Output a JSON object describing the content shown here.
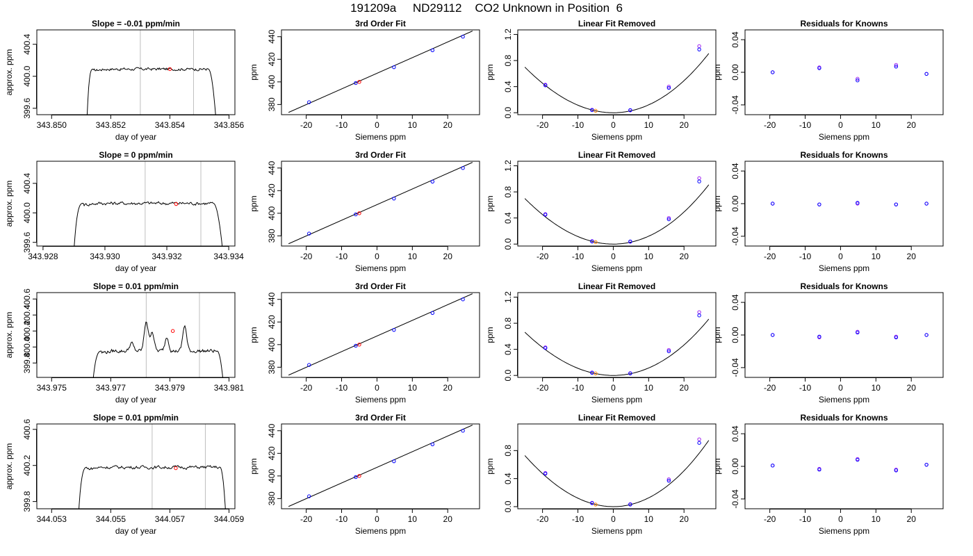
{
  "figure": {
    "title": "191209a     ND29112    CO2 Unknown in Position  6"
  },
  "colors": {
    "trace": "#000000",
    "vline": "#bebebe",
    "unknown_point": "#ff0000",
    "standard_point": "#0000ff",
    "residual_alt_point": "#a020f0",
    "unknown_fit_point": "#ff7f00"
  },
  "chart_data": [
    {
      "type": "line",
      "row": 0,
      "col": 0,
      "title": "Slope =  -0.01  ppm/min",
      "xlabel": "day of year",
      "ylabel": "approx. ppm",
      "xlim": [
        343.8495,
        343.8562
      ],
      "ylim": [
        399.52,
        400.58
      ],
      "xticks": [
        343.85,
        343.852,
        343.854,
        343.856
      ],
      "xtick_labels": [
        "343.850",
        "343.852",
        "343.854",
        "343.856"
      ],
      "yticks": [
        399.6,
        400.0,
        400.4
      ],
      "ytick_labels": [
        "399.6",
        "400.0",
        "400.4"
      ],
      "trace": {
        "start": 343.8512,
        "ramp_end": 343.8514,
        "flat_end": 343.8553,
        "end": 343.85555,
        "level": 400.09,
        "base": 399.5,
        "noise": 0.015,
        "spikes": []
      },
      "vlines": [
        343.853,
        343.8548
      ],
      "marker": {
        "x": 343.854,
        "y": 400.09
      }
    },
    {
      "type": "line",
      "row": 1,
      "col": 0,
      "title": "Slope =  0  ppm/min",
      "xlabel": "day of year",
      "ylabel": "approx. ppm",
      "xlim": [
        343.9278,
        343.9342
      ],
      "ylim": [
        399.55,
        400.7
      ],
      "xticks": [
        343.928,
        343.93,
        343.932,
        343.934
      ],
      "xtick_labels": [
        "343.928",
        "343.930",
        "343.932",
        "343.934"
      ],
      "yticks": [
        399.6,
        400.0,
        400.4
      ],
      "ytick_labels": [
        "399.6",
        "400.0",
        "400.4"
      ],
      "trace": {
        "start": 343.929,
        "ramp_end": 343.9293,
        "flat_end": 343.9335,
        "end": 343.9338,
        "level": 400.13,
        "base": 399.5,
        "noise": 0.02,
        "spikes": []
      },
      "vlines": [
        343.9313,
        343.9331
      ],
      "marker": {
        "x": 343.9323,
        "y": 400.12
      }
    },
    {
      "type": "line",
      "row": 2,
      "col": 0,
      "title": "Slope =  0.01  ppm/min",
      "xlabel": "day of year",
      "ylabel": "approx. ppm",
      "xlim": [
        343.9745,
        343.9812
      ],
      "ylim": [
        399.62,
        400.68
      ],
      "xticks": [
        343.975,
        343.977,
        343.979,
        343.981
      ],
      "xtick_labels": [
        "343.975",
        "343.977",
        "343.979",
        "343.981"
      ],
      "yticks": [
        399.8,
        400.0,
        400.2,
        400.4,
        400.6
      ],
      "ytick_labels": [
        "399.8",
        "400.0",
        "400.2",
        "400.4",
        "400.6"
      ],
      "trace": {
        "start": 343.9764,
        "ramp_end": 343.9767,
        "flat_end": 343.9806,
        "end": 343.9808,
        "level": 399.95,
        "base": 399.58,
        "noise": 0.02,
        "spikes": [
          [
            343.9777,
            0.1
          ],
          [
            343.9782,
            0.38
          ],
          [
            343.9784,
            0.25
          ],
          [
            343.9789,
            0.18
          ],
          [
            343.9795,
            0.32
          ]
        ]
      },
      "vlines": [
        343.9782,
        343.98
      ],
      "marker": {
        "x": 343.9791,
        "y": 400.2
      }
    },
    {
      "type": "line",
      "row": 3,
      "col": 0,
      "title": "Slope =  0.01  ppm/min",
      "xlabel": "day of year",
      "ylabel": "approx. ppm",
      "xlim": [
        344.0525,
        344.0592
      ],
      "ylim": [
        399.72,
        400.66
      ],
      "xticks": [
        344.053,
        344.055,
        344.057,
        344.059
      ],
      "xtick_labels": [
        "344.053",
        "344.055",
        "344.057",
        "344.059"
      ],
      "yticks": [
        399.8,
        400.2,
        400.6
      ],
      "ytick_labels": [
        "399.8",
        "400.2",
        "400.6"
      ],
      "trace": {
        "start": 344.0539,
        "ramp_end": 344.0542,
        "flat_end": 344.0587,
        "end": 344.0589,
        "level": 400.18,
        "base": 399.6,
        "noise": 0.015,
        "spikes": []
      },
      "vlines": [
        344.0564,
        344.0582
      ],
      "marker": {
        "x": 344.0572,
        "y": 400.17
      }
    },
    {
      "type": "scatter",
      "row": 0,
      "col": 1,
      "title": "3rd Order Fit",
      "xlabel": "Siemens ppm",
      "ylabel": "ppm",
      "xlim": [
        -27,
        29
      ],
      "ylim": [
        371,
        446
      ],
      "xticks": [
        -20,
        -10,
        0,
        10,
        20
      ],
      "xtick_labels": [
        "-20",
        "-10",
        "0",
        "10",
        "20"
      ],
      "yticks": [
        380,
        400,
        420,
        440
      ],
      "ytick_labels": [
        "380",
        "400",
        "420",
        "440"
      ],
      "line": {
        "x": [
          -25,
          27
        ],
        "y": [
          373.0,
          445.0
        ]
      },
      "standards": {
        "x": [
          -19.2,
          -6.0,
          4.8,
          15.7,
          24.3
        ],
        "y": [
          382,
          399,
          413,
          428,
          440
        ]
      },
      "unknown": {
        "x": -5.0,
        "y": 400
      }
    },
    {
      "type": "scatter",
      "row": 1,
      "col": 1,
      "title": "3rd Order Fit",
      "xlabel": "Siemens ppm",
      "ylabel": "ppm",
      "xlim": [
        -27,
        29
      ],
      "ylim": [
        371,
        446
      ],
      "xticks": [
        -20,
        -10,
        0,
        10,
        20
      ],
      "xtick_labels": [
        "-20",
        "-10",
        "0",
        "10",
        "20"
      ],
      "yticks": [
        380,
        400,
        420,
        440
      ],
      "ytick_labels": [
        "380",
        "400",
        "420",
        "440"
      ],
      "line": {
        "x": [
          -25,
          27
        ],
        "y": [
          373.0,
          445.0
        ]
      },
      "standards": {
        "x": [
          -19.2,
          -6.0,
          4.8,
          15.7,
          24.3
        ],
        "y": [
          382,
          399,
          413,
          428,
          440
        ]
      },
      "unknown": {
        "x": -5.0,
        "y": 400
      }
    },
    {
      "type": "scatter",
      "row": 2,
      "col": 1,
      "title": "3rd Order Fit",
      "xlabel": "Siemens ppm",
      "ylabel": "ppm",
      "xlim": [
        -27,
        29
      ],
      "ylim": [
        371,
        446
      ],
      "xticks": [
        -20,
        -10,
        0,
        10,
        20
      ],
      "xtick_labels": [
        "-20",
        "-10",
        "0",
        "10",
        "20"
      ],
      "yticks": [
        380,
        400,
        420,
        440
      ],
      "ytick_labels": [
        "380",
        "400",
        "420",
        "440"
      ],
      "line": {
        "x": [
          -25,
          27
        ],
        "y": [
          373.0,
          445.0
        ]
      },
      "standards": {
        "x": [
          -19.2,
          -6.0,
          4.8,
          15.7,
          24.3
        ],
        "y": [
          382,
          399,
          413,
          428,
          440
        ]
      },
      "unknown": {
        "x": -5.0,
        "y": 400
      }
    },
    {
      "type": "scatter",
      "row": 3,
      "col": 1,
      "title": "3rd Order Fit",
      "xlabel": "Siemens ppm",
      "ylabel": "ppm",
      "xlim": [
        -27,
        29
      ],
      "ylim": [
        371,
        446
      ],
      "xticks": [
        -20,
        -10,
        0,
        10,
        20
      ],
      "xtick_labels": [
        "-20",
        "-10",
        "0",
        "10",
        "20"
      ],
      "yticks": [
        380,
        400,
        420,
        440
      ],
      "ytick_labels": [
        "380",
        "400",
        "420",
        "440"
      ],
      "line": {
        "x": [
          -25,
          27
        ],
        "y": [
          373.0,
          445.0
        ]
      },
      "standards": {
        "x": [
          -19.2,
          -6.0,
          4.8,
          15.7,
          24.3
        ],
        "y": [
          382,
          399,
          413,
          428,
          440
        ]
      },
      "unknown": {
        "x": -5.0,
        "y": 400
      }
    },
    {
      "type": "scatter",
      "row": 0,
      "col": 2,
      "title": "Linear Fit Removed",
      "xlabel": "Siemens ppm",
      "ylabel": "ppm",
      "xlim": [
        -27,
        29
      ],
      "ylim": [
        -0.03,
        1.27
      ],
      "xticks": [
        -20,
        -10,
        0,
        10,
        20
      ],
      "xtick_labels": [
        "-20",
        "-10",
        "0",
        "10",
        "20"
      ],
      "yticks": [
        0.0,
        0.4,
        0.8,
        1.2
      ],
      "ytick_labels": [
        "0.0",
        "0.4",
        "0.8",
        "1.2"
      ],
      "curve": {
        "a": 0.00118,
        "b": 2.45e-06,
        "x0": -25,
        "x1": 27
      },
      "standards": {
        "x": [
          -19.2,
          -6.0,
          4.8,
          15.7,
          24.3
        ],
        "y": [
          0.42,
          0.04,
          0.04,
          0.38,
          0.97
        ]
      },
      "residual_alt": {
        "x": [
          -19.2,
          -6.0,
          4.8,
          15.7,
          24.3
        ],
        "y": [
          0.43,
          0.045,
          0.035,
          0.4,
          1.02
        ]
      },
      "unknown": {
        "x": -5.0,
        "y": 0.03
      }
    },
    {
      "type": "scatter",
      "row": 1,
      "col": 2,
      "title": "Linear Fit Removed",
      "xlabel": "Siemens ppm",
      "ylabel": "ppm",
      "xlim": [
        -27,
        29
      ],
      "ylim": [
        -0.03,
        1.27
      ],
      "xticks": [
        -20,
        -10,
        0,
        10,
        20
      ],
      "xtick_labels": [
        "-20",
        "-10",
        "0",
        "10",
        "20"
      ],
      "yticks": [
        0.0,
        0.4,
        0.8,
        1.2
      ],
      "ytick_labels": [
        "0.0",
        "0.4",
        "0.8",
        "1.2"
      ],
      "curve": {
        "a": 0.00118,
        "b": 2.5e-06,
        "x0": -25,
        "x1": 27
      },
      "standards": {
        "x": [
          -19.2,
          -6.0,
          4.8,
          15.7,
          24.3
        ],
        "y": [
          0.45,
          0.04,
          0.04,
          0.38,
          0.96
        ]
      },
      "residual_alt": {
        "x": [
          -19.2,
          -6.0,
          4.8,
          15.7,
          24.3
        ],
        "y": [
          0.46,
          0.045,
          0.035,
          0.4,
          1.01
        ]
      },
      "unknown": {
        "x": -5.0,
        "y": 0.03
      }
    },
    {
      "type": "scatter",
      "row": 2,
      "col": 2,
      "title": "Linear Fit Removed",
      "xlabel": "Siemens ppm",
      "ylabel": "ppm",
      "xlim": [
        -27,
        29
      ],
      "ylim": [
        -0.03,
        1.27
      ],
      "xticks": [
        -20,
        -10,
        0,
        10,
        20
      ],
      "xtick_labels": [
        "-20",
        "-10",
        "0",
        "10",
        "20"
      ],
      "yticks": [
        0.0,
        0.4,
        0.8,
        1.2
      ],
      "ytick_labels": [
        "0.0",
        "0.4",
        "0.8",
        "1.2"
      ],
      "curve": {
        "a": 0.00112,
        "b": 2.4e-06,
        "x0": -25,
        "x1": 27
      },
      "standards": {
        "x": [
          -19.2,
          -6.0,
          4.8,
          15.7,
          24.3
        ],
        "y": [
          0.42,
          0.04,
          0.03,
          0.37,
          0.92
        ]
      },
      "residual_alt": {
        "x": [
          -19.2,
          -6.0,
          4.8,
          15.7,
          24.3
        ],
        "y": [
          0.43,
          0.045,
          0.035,
          0.39,
          0.97
        ]
      },
      "unknown": {
        "x": -5.0,
        "y": 0.03
      }
    },
    {
      "type": "scatter",
      "row": 3,
      "col": 2,
      "title": "Linear Fit Removed",
      "xlabel": "Siemens ppm",
      "ylabel": "ppm",
      "xlim": [
        -27,
        29
      ],
      "ylim": [
        -0.03,
        1.18
      ],
      "xticks": [
        -20,
        -10,
        0,
        10,
        20
      ],
      "xtick_labels": [
        "-20",
        "-10",
        "0",
        "10",
        "20"
      ],
      "yticks": [
        0.0,
        0.4,
        0.8
      ],
      "ytick_labels": [
        "0.0",
        "0.4",
        "0.8"
      ],
      "curve": {
        "a": 0.00123,
        "b": 2.5e-06,
        "x0": -25,
        "x1": 27
      },
      "standards": {
        "x": [
          -19.2,
          -6.0,
          4.8,
          15.7,
          24.3
        ],
        "y": [
          0.47,
          0.05,
          0.03,
          0.37,
          0.91
        ]
      },
      "residual_alt": {
        "x": [
          -19.2,
          -6.0,
          4.8,
          15.7,
          24.3
        ],
        "y": [
          0.48,
          0.055,
          0.035,
          0.39,
          0.96
        ]
      },
      "unknown": {
        "x": -5.0,
        "y": 0.03
      }
    },
    {
      "type": "scatter",
      "row": 0,
      "col": 3,
      "title": "Residuals for Knowns",
      "xlabel": "Siemens ppm",
      "ylabel": "ppm",
      "xlim": [
        -27,
        29
      ],
      "ylim": [
        -0.052,
        0.052
      ],
      "xticks": [
        -20,
        -10,
        0,
        10,
        20
      ],
      "xtick_labels": [
        "-20",
        "-10",
        "0",
        "10",
        "20"
      ],
      "yticks": [
        -0.04,
        0.0,
        0.04
      ],
      "ytick_labels": [
        "-0.04",
        "0.00",
        "0.04"
      ],
      "standards": {
        "x": [
          -19.2,
          -6.0,
          4.8,
          15.7,
          24.3
        ],
        "y": [
          0.0,
          0.005,
          -0.01,
          0.007,
          -0.002
        ]
      },
      "residual_alt": {
        "x": [
          -19.2,
          -6.0,
          4.8,
          15.7,
          24.3
        ],
        "y": [
          0.0,
          0.006,
          -0.008,
          0.009,
          -0.002
        ]
      }
    },
    {
      "type": "scatter",
      "row": 1,
      "col": 3,
      "title": "Residuals for Knowns",
      "xlabel": "Siemens ppm",
      "ylabel": "ppm",
      "xlim": [
        -27,
        29
      ],
      "ylim": [
        -0.052,
        0.052
      ],
      "xticks": [
        -20,
        -10,
        0,
        10,
        20
      ],
      "xtick_labels": [
        "-20",
        "-10",
        "0",
        "10",
        "20"
      ],
      "yticks": [
        -0.04,
        0.0,
        0.04
      ],
      "ytick_labels": [
        "-0.04",
        "0.00",
        "0.04"
      ],
      "standards": {
        "x": [
          -19.2,
          -6.0,
          4.8,
          15.7,
          24.3
        ],
        "y": [
          0.0,
          -0.001,
          0.001,
          -0.001,
          0.0
        ]
      },
      "residual_alt": {
        "x": [
          -19.2,
          -6.0,
          4.8,
          15.7,
          24.3
        ],
        "y": [
          0.0,
          -0.001,
          0.0,
          -0.001,
          0.0
        ]
      }
    },
    {
      "type": "scatter",
      "row": 2,
      "col": 3,
      "title": "Residuals for Knowns",
      "xlabel": "Siemens ppm",
      "ylabel": "ppm",
      "xlim": [
        -27,
        29
      ],
      "ylim": [
        -0.052,
        0.052
      ],
      "xticks": [
        -20,
        -10,
        0,
        10,
        20
      ],
      "xtick_labels": [
        "-20",
        "-10",
        "0",
        "10",
        "20"
      ],
      "yticks": [
        -0.04,
        0.0,
        0.04
      ],
      "ytick_labels": [
        "-0.04",
        "0.00",
        "0.04"
      ],
      "standards": {
        "x": [
          -19.2,
          -6.0,
          4.8,
          15.7,
          24.3
        ],
        "y": [
          0.0,
          -0.002,
          0.003,
          -0.003,
          0.0
        ]
      },
      "residual_alt": {
        "x": [
          -19.2,
          -6.0,
          4.8,
          15.7,
          24.3
        ],
        "y": [
          0.0,
          -0.003,
          0.004,
          -0.002,
          0.0
        ]
      }
    },
    {
      "type": "scatter",
      "row": 3,
      "col": 3,
      "title": "Residuals for Knowns",
      "xlabel": "Siemens ppm",
      "ylabel": "ppm",
      "xlim": [
        -27,
        29
      ],
      "ylim": [
        -0.052,
        0.052
      ],
      "xticks": [
        -20,
        -10,
        0,
        10,
        20
      ],
      "xtick_labels": [
        "-20",
        "-10",
        "0",
        "10",
        "20"
      ],
      "yticks": [
        -0.04,
        0.0,
        0.04
      ],
      "ytick_labels": [
        "-0.04",
        "0.00",
        "0.04"
      ],
      "standards": {
        "x": [
          -19.2,
          -6.0,
          4.8,
          15.7,
          24.3
        ],
        "y": [
          0.001,
          -0.004,
          0.008,
          -0.005,
          0.002
        ]
      },
      "residual_alt": {
        "x": [
          -19.2,
          -6.0,
          4.8,
          15.7,
          24.3
        ],
        "y": [
          0.001,
          -0.003,
          0.009,
          -0.004,
          0.002
        ]
      }
    }
  ]
}
